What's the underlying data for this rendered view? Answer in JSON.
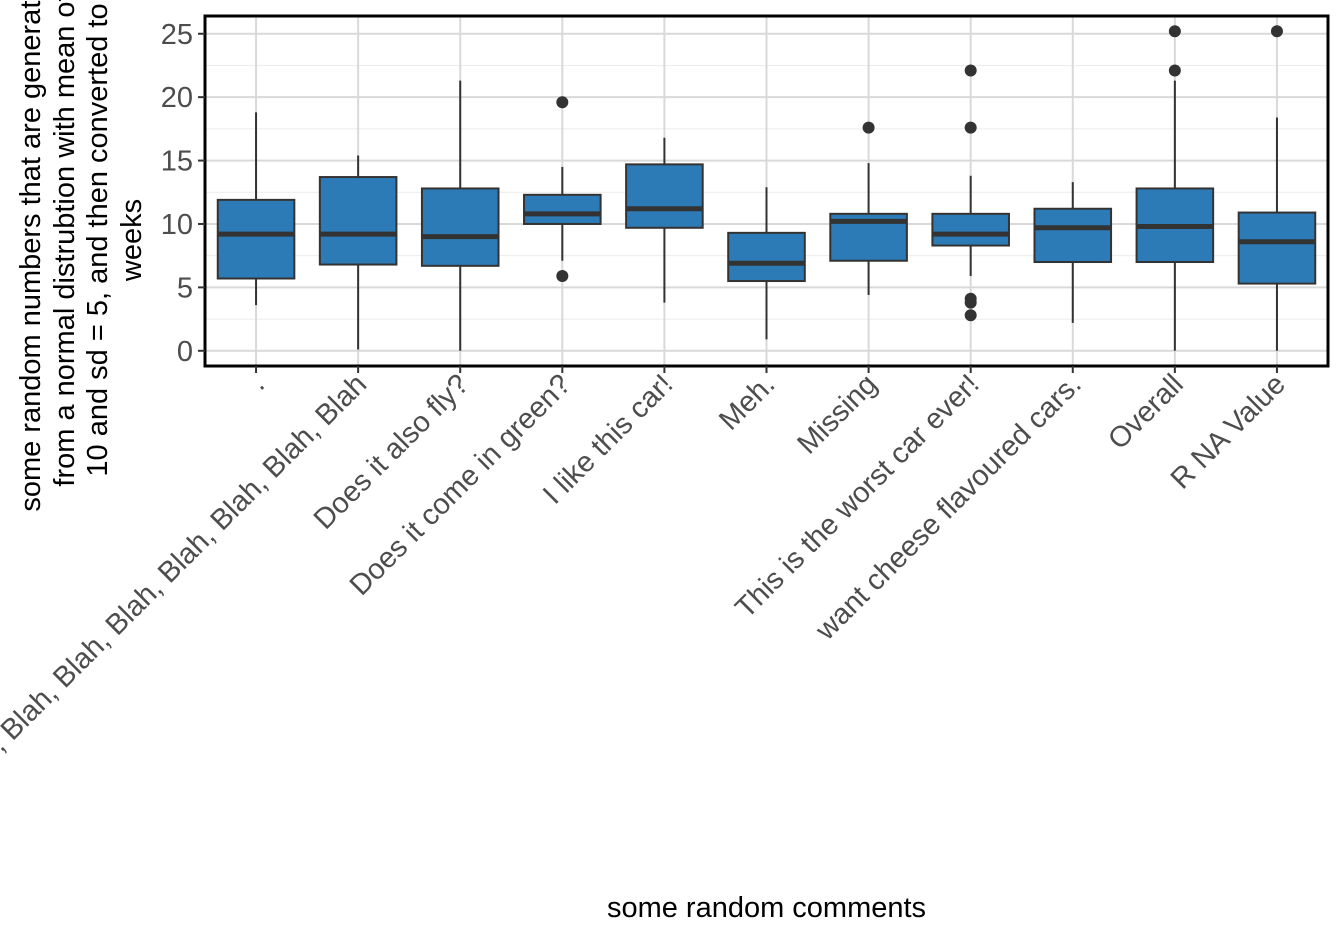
{
  "chart_data": {
    "type": "boxplot",
    "title": "",
    "xlabel": "some random comments",
    "ylabel_lines": [
      "some random numbers that are generated",
      "from a normal distrubtion with mean of",
      "10 and sd = 5, and then converted to",
      "weeks"
    ],
    "ylim": [
      -1.2,
      26.4
    ],
    "yticks": [
      0,
      5,
      10,
      15,
      20,
      25
    ],
    "ytick_labels": [
      "0",
      "5",
      "10",
      "15",
      "20",
      "25"
    ],
    "grid": true,
    "box_fill": "#2C7BB6",
    "categories": [
      ".",
      "Blah, Blah, Blah, Blah, Blah, Blah, Blah, Blah",
      "Does it also fly?",
      "Does it come in green?",
      "I like this car!",
      "Meh.",
      "Missing",
      "This is the worst car ever!",
      "want cheese flavoured cars.",
      "Overall",
      "R NA Value"
    ],
    "boxes": [
      {
        "min": 3.6,
        "q1": 5.7,
        "median": 9.2,
        "q3": 11.9,
        "max": 18.8,
        "outliers": []
      },
      {
        "min": 0.1,
        "q1": 6.8,
        "median": 9.2,
        "q3": 13.7,
        "max": 15.4,
        "outliers": []
      },
      {
        "min": 0.0,
        "q1": 6.7,
        "median": 9.0,
        "q3": 12.8,
        "max": 21.3,
        "outliers": []
      },
      {
        "min": 7.1,
        "q1": 10.0,
        "median": 10.8,
        "q3": 12.3,
        "max": 14.5,
        "outliers": [
          19.6,
          5.9
        ]
      },
      {
        "min": 3.8,
        "q1": 9.7,
        "median": 11.2,
        "q3": 14.7,
        "max": 16.8,
        "outliers": []
      },
      {
        "min": 0.9,
        "q1": 5.5,
        "median": 6.9,
        "q3": 9.3,
        "max": 12.9,
        "outliers": []
      },
      {
        "min": 4.4,
        "q1": 7.1,
        "median": 10.2,
        "q3": 10.8,
        "max": 14.8,
        "outliers": [
          17.6
        ]
      },
      {
        "min": 5.9,
        "q1": 8.3,
        "median": 9.2,
        "q3": 10.8,
        "max": 13.8,
        "outliers": [
          22.1,
          17.6,
          4.1,
          3.8,
          2.8
        ]
      },
      {
        "min": 2.2,
        "q1": 7.0,
        "median": 9.7,
        "q3": 11.2,
        "max": 13.3,
        "outliers": []
      },
      {
        "min": 0.0,
        "q1": 7.0,
        "median": 9.8,
        "q3": 12.8,
        "max": 21.3,
        "outliers": [
          25.2,
          22.1
        ]
      },
      {
        "min": 0.0,
        "q1": 5.3,
        "median": 8.6,
        "q3": 10.9,
        "max": 18.4,
        "outliers": [
          25.2
        ]
      }
    ]
  }
}
